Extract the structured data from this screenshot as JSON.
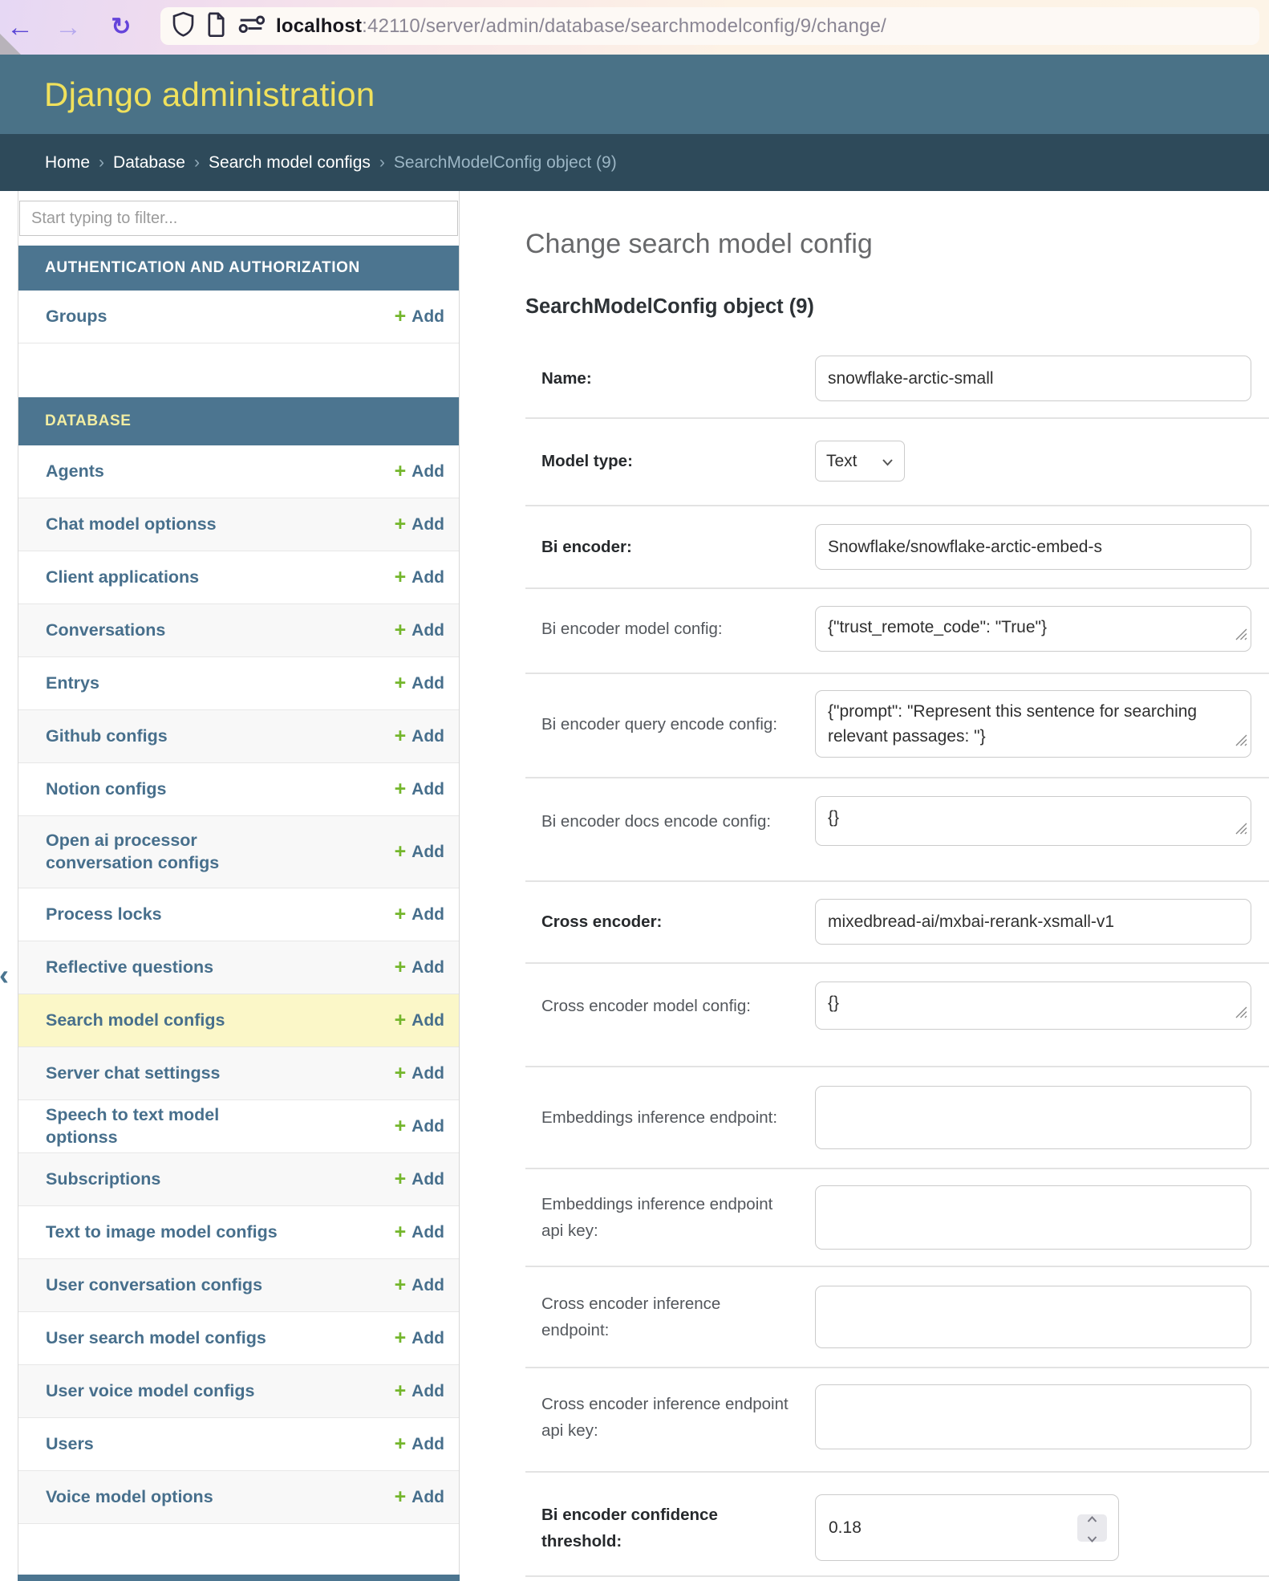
{
  "browser": {
    "url_host": "localhost",
    "url_rest": ":42110/server/admin/database/searchmodelconfig/9/change/",
    "back_icon": "←",
    "forward_icon": "→",
    "reload_icon": "↻"
  },
  "header": {
    "title": "Django administration"
  },
  "breadcrumb": {
    "links": [
      "Home",
      "Database",
      "Search model configs"
    ],
    "current": "SearchModelConfig object (9)",
    "separator": "›"
  },
  "sidebar": {
    "filter_placeholder": "Start typing to filter...",
    "toggle_icon": "‹",
    "add_label": "Add",
    "plus_icon": "+",
    "sections": [
      {
        "title": "AUTHENTICATION AND AUTHORIZATION",
        "current_app": false,
        "items": [
          {
            "label": "Groups",
            "selected": false
          }
        ]
      },
      {
        "title": "DATABASE",
        "current_app": true,
        "items": [
          {
            "label": "Agents",
            "selected": false
          },
          {
            "label": "Chat model optionss",
            "selected": false
          },
          {
            "label": "Client applications",
            "selected": false
          },
          {
            "label": "Conversations",
            "selected": false
          },
          {
            "label": "Entrys",
            "selected": false
          },
          {
            "label": "Github configs",
            "selected": false
          },
          {
            "label": "Notion configs",
            "selected": false
          },
          {
            "label": "Open ai processor conversation configs",
            "selected": false
          },
          {
            "label": "Process locks",
            "selected": false
          },
          {
            "label": "Reflective questions",
            "selected": false
          },
          {
            "label": "Search model configs",
            "selected": true
          },
          {
            "label": "Server chat settingss",
            "selected": false
          },
          {
            "label": "Speech to text model optionss",
            "selected": false
          },
          {
            "label": "Subscriptions",
            "selected": false
          },
          {
            "label": "Text to image model configs",
            "selected": false
          },
          {
            "label": "User conversation configs",
            "selected": false
          },
          {
            "label": "User search model configs",
            "selected": false
          },
          {
            "label": "User voice model configs",
            "selected": false
          },
          {
            "label": "Users",
            "selected": false
          },
          {
            "label": "Voice model options",
            "selected": false
          }
        ]
      }
    ]
  },
  "main": {
    "page_title": "Change search model config",
    "object_title": "SearchModelConfig object (9)",
    "fields": [
      {
        "label": "Name:",
        "required": true,
        "kind": "input",
        "value": "snowflake-arctic-small"
      },
      {
        "label": "Model type:",
        "required": true,
        "kind": "select",
        "value": "Text"
      },
      {
        "label": "Bi encoder:",
        "required": true,
        "kind": "input",
        "value": "Snowflake/snowflake-arctic-embed-s"
      },
      {
        "label": "Bi encoder model config:",
        "required": false,
        "kind": "textarea",
        "value": "{\"trust_remote_code\": \"True\"}"
      },
      {
        "label": "Bi encoder query encode config:",
        "required": false,
        "kind": "textarea",
        "value": "{\"prompt\": \"Represent this sentence for searching relevant passages: \"}"
      },
      {
        "label": "Bi encoder docs encode config:",
        "required": false,
        "kind": "textarea",
        "value": "{}"
      },
      {
        "label": "Cross encoder:",
        "required": true,
        "kind": "input",
        "value": "mixedbread-ai/mxbai-rerank-xsmall-v1"
      },
      {
        "label": "Cross encoder model config:",
        "required": false,
        "kind": "textarea",
        "value": "{}"
      },
      {
        "label": "Embeddings inference endpoint:",
        "required": false,
        "kind": "input",
        "value": ""
      },
      {
        "label": "Embeddings inference endpoint api key:",
        "required": false,
        "kind": "input",
        "value": ""
      },
      {
        "label": "Cross encoder inference endpoint:",
        "required": false,
        "kind": "input",
        "value": ""
      },
      {
        "label": "Cross encoder inference endpoint api key:",
        "required": false,
        "kind": "input",
        "value": ""
      },
      {
        "label": "Bi encoder confidence threshold:",
        "required": true,
        "kind": "number",
        "value": "0.18"
      }
    ]
  },
  "colors": {
    "header_bg": "#4a7287",
    "breadcrumb_bg": "#2e4a5a",
    "brand_yellow": "#f0e15c",
    "module_caption_bg": "#4c7590",
    "caption_current_app_text": "#f2eda2",
    "link": "#476f8c",
    "add_plus_green": "#74b62c",
    "selected_row_bg": "#fbf7c8",
    "alt_row_bg": "#f8f8f8"
  }
}
